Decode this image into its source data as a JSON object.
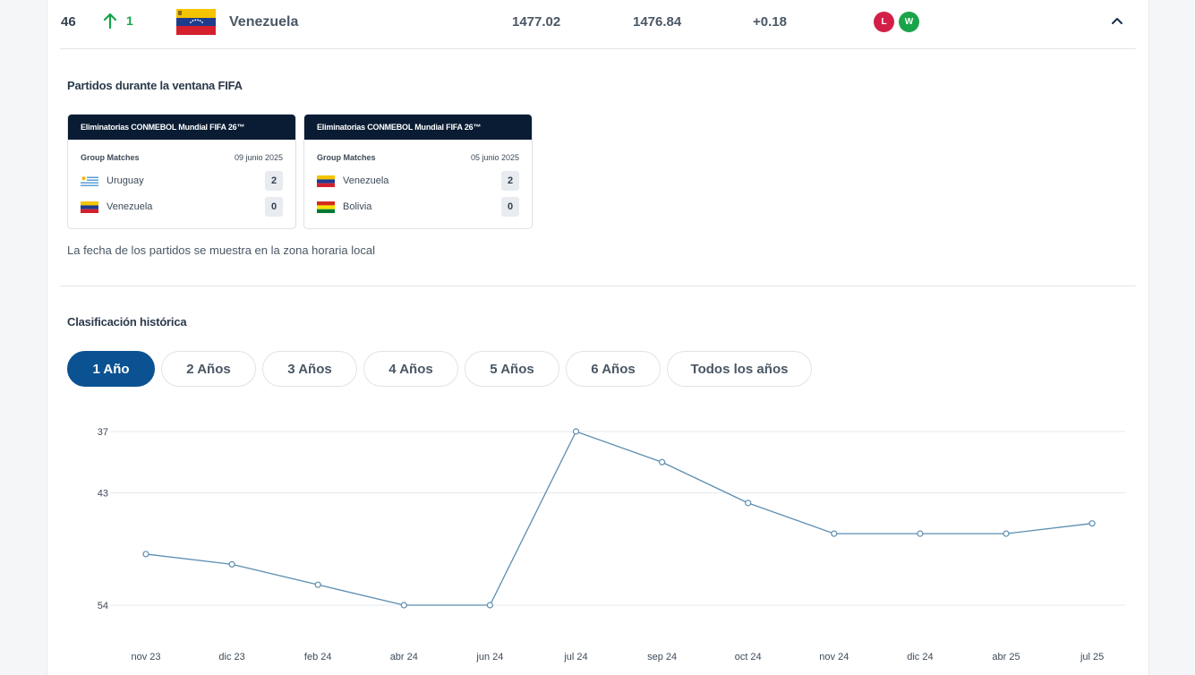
{
  "ranking_row": {
    "position": "46",
    "change": "1",
    "country": "Venezuela",
    "points": "1477.02",
    "previous_points": "1476.84",
    "points_change": "+0.18",
    "results": [
      "L",
      "W"
    ],
    "colors": {
      "up": "#16a34a",
      "loss": "#d31f48",
      "win": "#1aa44a"
    }
  },
  "matches_section": {
    "title": "Partidos durante la ventana FIFA",
    "cards": [
      {
        "competition": "Eliminatorias CONMEBOL Mundial FIFA 26™",
        "stage": "Group Matches",
        "date": "09 junio 2025",
        "teams": [
          {
            "name": "Uruguay",
            "flag": "uruguay-flag",
            "score": "2"
          },
          {
            "name": "Venezuela",
            "flag": "venezuela-flag",
            "score": "0"
          }
        ]
      },
      {
        "competition": "Eliminatorias CONMEBOL Mundial FIFA 26™",
        "stage": "Group Matches",
        "date": "05 junio 2025",
        "teams": [
          {
            "name": "Venezuela",
            "flag": "venezuela-flag",
            "score": "2"
          },
          {
            "name": "Bolivia",
            "flag": "bolivia-flag",
            "score": "0"
          }
        ]
      }
    ],
    "note": "La fecha de los partidos se muestra en la zona horaria local"
  },
  "history_section": {
    "title": "Clasificación histórica",
    "tabs": [
      "1 Año",
      "2 Años",
      "3 Años",
      "4 Años",
      "5 Años",
      "6 Años",
      "Todos los años"
    ],
    "active_tab": "1 Año",
    "accent_color": "#0b5292"
  },
  "chart_data": {
    "type": "line",
    "categories": [
      "nov 23",
      "dic 23",
      "feb 24",
      "abr 24",
      "jun 24",
      "jul 24",
      "sep 24",
      "oct 24",
      "nov 24",
      "dic 24",
      "abr 25",
      "jul 25"
    ],
    "values": [
      49,
      50,
      52,
      54,
      54,
      37,
      40,
      44,
      47,
      47,
      47,
      46
    ],
    "y_ticks": [
      "37",
      "43",
      "54"
    ],
    "y_tick_values": [
      37,
      43,
      54
    ],
    "ylim": [
      37,
      54
    ],
    "y_inverted": true,
    "grid": true,
    "line_color": "#5b8db0"
  }
}
